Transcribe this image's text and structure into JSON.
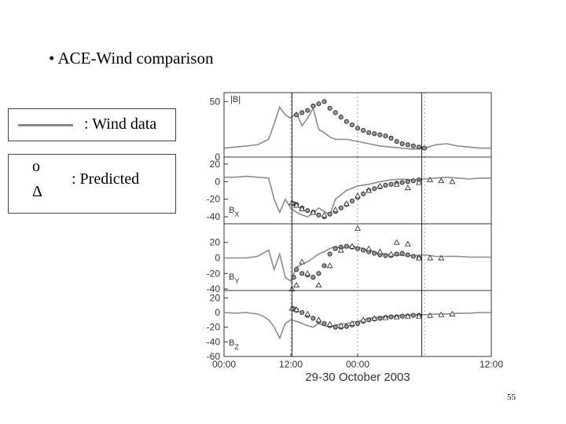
{
  "slide": {
    "title": "• ACE-Wind comparison",
    "legend": {
      "wind_label": ": Wind data",
      "predicted_symbols": [
        "o",
        "Δ"
      ],
      "predicted_label": ": Predicted"
    },
    "page_number": "55"
  },
  "colors": {
    "wind_data": "#8c8c8c",
    "predicted": "#222222",
    "frame": "#333333",
    "grid": "#777777"
  },
  "chart_data": {
    "type": "line",
    "xlabel": "29-30 October 2003",
    "x_ticks": [
      "00:00",
      "12:00",
      "00:00",
      "12:00"
    ],
    "x_range_hours": [
      0,
      48
    ],
    "vertical_markers_hours": [
      12.2,
      35.5
    ],
    "panels": [
      {
        "label": "|B|",
        "ylim": [
          0,
          58
        ],
        "yticks": [
          0,
          50
        ],
        "wind_data": [
          [
            0,
            8
          ],
          [
            2,
            9
          ],
          [
            4,
            10
          ],
          [
            6,
            11
          ],
          [
            8,
            16
          ],
          [
            9,
            30
          ],
          [
            10,
            45
          ],
          [
            11,
            38
          ],
          [
            12,
            35
          ],
          [
            13,
            40
          ],
          [
            14,
            28
          ],
          [
            15,
            35
          ],
          [
            16,
            44
          ],
          [
            17,
            25
          ],
          [
            18,
            22
          ],
          [
            19,
            18
          ],
          [
            20,
            16
          ],
          [
            22,
            16
          ],
          [
            24,
            14
          ],
          [
            26,
            12
          ],
          [
            28,
            10
          ],
          [
            30,
            9
          ],
          [
            32,
            8
          ],
          [
            34,
            7
          ],
          [
            36,
            8
          ],
          [
            38,
            11
          ],
          [
            40,
            12
          ],
          [
            42,
            10
          ],
          [
            44,
            9
          ],
          [
            46,
            8
          ],
          [
            48,
            8
          ]
        ],
        "predicted_circles": [
          [
            13,
            38
          ],
          [
            14,
            40
          ],
          [
            15,
            42
          ],
          [
            16,
            46
          ],
          [
            17,
            48
          ],
          [
            18,
            50
          ],
          [
            19,
            44
          ],
          [
            20,
            40
          ],
          [
            21,
            36
          ],
          [
            22,
            32
          ],
          [
            23,
            29
          ],
          [
            24,
            26
          ],
          [
            25,
            24
          ],
          [
            26,
            22
          ],
          [
            27,
            21
          ],
          [
            28,
            20
          ],
          [
            29,
            19
          ],
          [
            30,
            17
          ],
          [
            31,
            14
          ],
          [
            32,
            12
          ],
          [
            33,
            11
          ],
          [
            34,
            10
          ],
          [
            35,
            9
          ],
          [
            36,
            8
          ]
        ],
        "predicted_triangles": []
      },
      {
        "label": "BX",
        "ylim": [
          -48,
          28
        ],
        "yticks": [
          20,
          0,
          -20,
          -40
        ],
        "wind_data": [
          [
            0,
            5
          ],
          [
            2,
            5
          ],
          [
            4,
            6
          ],
          [
            6,
            5
          ],
          [
            8,
            4
          ],
          [
            9,
            -20
          ],
          [
            10,
            -35
          ],
          [
            11,
            -20
          ],
          [
            12,
            -30
          ],
          [
            13,
            -35
          ],
          [
            14,
            -38
          ],
          [
            15,
            -40
          ],
          [
            16,
            -36
          ],
          [
            17,
            -30
          ],
          [
            18,
            -34
          ],
          [
            19,
            -38
          ],
          [
            20,
            -20
          ],
          [
            21,
            -15
          ],
          [
            22,
            -10
          ],
          [
            24,
            -5
          ],
          [
            26,
            -3
          ],
          [
            28,
            0
          ],
          [
            30,
            2
          ],
          [
            32,
            3
          ],
          [
            34,
            2
          ],
          [
            36,
            3
          ],
          [
            38,
            4
          ],
          [
            40,
            5
          ],
          [
            42,
            4
          ],
          [
            44,
            3
          ],
          [
            46,
            4
          ],
          [
            48,
            4
          ]
        ],
        "predicted_circles": [
          [
            12.5,
            -25
          ],
          [
            13,
            -26
          ],
          [
            14,
            -30
          ],
          [
            15,
            -33
          ],
          [
            16,
            -35
          ],
          [
            17,
            -38
          ],
          [
            18,
            -40
          ],
          [
            19,
            -37
          ],
          [
            20,
            -34
          ],
          [
            21,
            -30
          ],
          [
            22,
            -26
          ],
          [
            23,
            -22
          ],
          [
            24,
            -18
          ],
          [
            25,
            -14
          ],
          [
            26,
            -10
          ],
          [
            27,
            -8
          ],
          [
            28,
            -6
          ],
          [
            29,
            -4
          ],
          [
            30,
            -3
          ],
          [
            31,
            -2
          ],
          [
            32,
            -1
          ],
          [
            33,
            0
          ],
          [
            34,
            1
          ],
          [
            35,
            2
          ]
        ],
        "predicted_triangles": [
          [
            12.2,
            -24
          ],
          [
            13,
            -27
          ],
          [
            14,
            -31
          ],
          [
            16,
            -35
          ],
          [
            18,
            -38
          ],
          [
            20,
            -32
          ],
          [
            22,
            -25
          ],
          [
            24,
            -16
          ],
          [
            26,
            -10
          ],
          [
            28,
            -5
          ],
          [
            31,
            -3
          ],
          [
            33,
            -7
          ],
          [
            35,
            -1
          ],
          [
            37,
            2
          ],
          [
            39,
            1
          ],
          [
            41,
            0
          ]
        ]
      },
      {
        "label": "BY",
        "ylim": [
          -42,
          44
        ],
        "yticks": [
          20,
          0,
          -20,
          -40
        ],
        "wind_data": [
          [
            0,
            0
          ],
          [
            2,
            0
          ],
          [
            4,
            0
          ],
          [
            6,
            2
          ],
          [
            7,
            6
          ],
          [
            8,
            10
          ],
          [
            9,
            -15
          ],
          [
            10,
            5
          ],
          [
            11,
            -25
          ],
          [
            12,
            -30
          ],
          [
            13,
            -12
          ],
          [
            14,
            -8
          ],
          [
            15,
            -5
          ],
          [
            16,
            0
          ],
          [
            17,
            5
          ],
          [
            18,
            8
          ],
          [
            19,
            12
          ],
          [
            20,
            15
          ],
          [
            21,
            12
          ],
          [
            22,
            14
          ],
          [
            24,
            14
          ],
          [
            26,
            10
          ],
          [
            28,
            6
          ],
          [
            30,
            4
          ],
          [
            32,
            3
          ],
          [
            34,
            3
          ],
          [
            36,
            4
          ],
          [
            38,
            2
          ],
          [
            40,
            2
          ],
          [
            42,
            2
          ],
          [
            44,
            1
          ],
          [
            46,
            1
          ],
          [
            48,
            1
          ]
        ],
        "predicted_circles": [
          [
            12.5,
            -25
          ],
          [
            13,
            -15
          ],
          [
            14,
            -20
          ],
          [
            15,
            -22
          ],
          [
            16,
            -25
          ],
          [
            17,
            -20
          ],
          [
            18,
            -10
          ],
          [
            19,
            5
          ],
          [
            20,
            12
          ],
          [
            21,
            14
          ],
          [
            22,
            15
          ],
          [
            23,
            14
          ],
          [
            24,
            12
          ],
          [
            25,
            10
          ],
          [
            26,
            8
          ],
          [
            27,
            6
          ],
          [
            28,
            4
          ],
          [
            29,
            3
          ],
          [
            30,
            3
          ],
          [
            31,
            5
          ],
          [
            32,
            6
          ],
          [
            33,
            4
          ],
          [
            34,
            2
          ],
          [
            35,
            0
          ]
        ],
        "predicted_triangles": [
          [
            12.2,
            -40
          ],
          [
            13,
            -35
          ],
          [
            14,
            -5
          ],
          [
            15,
            -20
          ],
          [
            17,
            -35
          ],
          [
            19,
            -10
          ],
          [
            21,
            10
          ],
          [
            23,
            15
          ],
          [
            24,
            38
          ],
          [
            26,
            12
          ],
          [
            28,
            8
          ],
          [
            30,
            5
          ],
          [
            31,
            20
          ],
          [
            33,
            18
          ],
          [
            35,
            0
          ],
          [
            37,
            0
          ],
          [
            39,
            0
          ]
        ]
      },
      {
        "label": "BZ",
        "ylim": [
          -60,
          30
        ],
        "yticks": [
          20,
          0,
          -20,
          -40,
          -60
        ],
        "wind_data": [
          [
            0,
            0
          ],
          [
            2,
            -1
          ],
          [
            4,
            0
          ],
          [
            6,
            -2
          ],
          [
            7,
            -5
          ],
          [
            8,
            -10
          ],
          [
            9,
            -20
          ],
          [
            10,
            -35
          ],
          [
            11,
            -15
          ],
          [
            12,
            -10
          ],
          [
            13,
            -12
          ],
          [
            14,
            -15
          ],
          [
            15,
            -18
          ],
          [
            16,
            -20
          ],
          [
            17,
            -15
          ],
          [
            18,
            -18
          ],
          [
            19,
            -20
          ],
          [
            20,
            -17
          ],
          [
            22,
            -15
          ],
          [
            24,
            -12
          ],
          [
            26,
            -8
          ],
          [
            28,
            -6
          ],
          [
            30,
            -5
          ],
          [
            32,
            -4
          ],
          [
            34,
            -3
          ],
          [
            36,
            -3
          ],
          [
            38,
            -2
          ],
          [
            40,
            -2
          ],
          [
            42,
            -1
          ],
          [
            44,
            -1
          ],
          [
            46,
            0
          ],
          [
            48,
            0
          ]
        ],
        "predicted_circles": [
          [
            12.5,
            5
          ],
          [
            13,
            3
          ],
          [
            14,
            0
          ],
          [
            15,
            -4
          ],
          [
            16,
            -8
          ],
          [
            17,
            -12
          ],
          [
            18,
            -15
          ],
          [
            19,
            -18
          ],
          [
            20,
            -20
          ],
          [
            21,
            -20
          ],
          [
            22,
            -19
          ],
          [
            23,
            -17
          ],
          [
            24,
            -15
          ],
          [
            25,
            -12
          ],
          [
            26,
            -10
          ],
          [
            27,
            -9
          ],
          [
            28,
            -8
          ],
          [
            29,
            -7
          ],
          [
            30,
            -6
          ],
          [
            31,
            -6
          ],
          [
            32,
            -5
          ],
          [
            33,
            -5
          ],
          [
            34,
            -4
          ],
          [
            35,
            -4
          ]
        ],
        "predicted_triangles": [
          [
            12.2,
            6
          ],
          [
            13,
            4
          ],
          [
            15,
            -2
          ],
          [
            17,
            -10
          ],
          [
            19,
            -16
          ],
          [
            21,
            -18
          ],
          [
            23,
            -15
          ],
          [
            25,
            -10
          ],
          [
            27,
            -8
          ],
          [
            29,
            -7
          ],
          [
            31,
            -6
          ],
          [
            33,
            -5
          ],
          [
            35,
            -5
          ],
          [
            37,
            -4
          ],
          [
            39,
            -3
          ],
          [
            41,
            -2
          ]
        ]
      }
    ]
  }
}
